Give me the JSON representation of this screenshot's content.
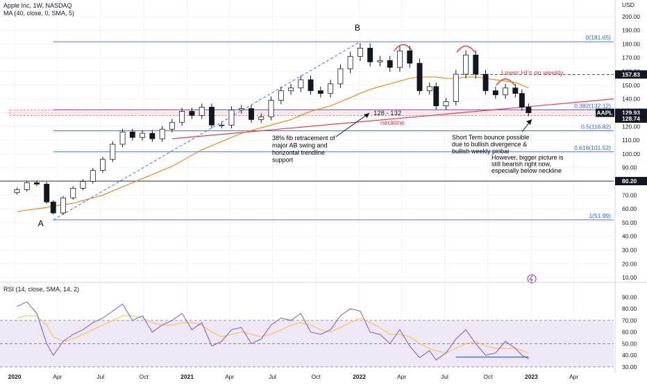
{
  "header": {
    "title": "Apple Inc, 1W, NASDAQ",
    "indicator": "MA (40, close, 0, SMA, 5)",
    "rsi_title": "RSI (14, close, SMA, 14, 2)"
  },
  "price_axis": {
    "currency": "USD",
    "ticks": [
      200,
      190,
      180,
      170,
      160,
      150,
      140,
      130,
      120,
      110,
      100,
      90,
      80,
      70,
      60,
      50,
      40,
      30,
      20,
      10
    ],
    "range": [
      6,
      208
    ]
  },
  "rsi_axis": {
    "ticks": [
      90,
      80,
      70,
      60,
      50,
      40,
      30
    ],
    "range": [
      27,
      92
    ],
    "band": [
      30,
      70
    ],
    "mid": 50
  },
  "time_axis": {
    "labels": [
      "2020",
      "Apr",
      "Jul",
      "Oct",
      "2021",
      "Apr",
      "Jul",
      "Oct",
      "2022",
      "Apr",
      "Jul",
      "Oct",
      "2023",
      "Apr"
    ]
  },
  "price_tags": [
    {
      "label": "157.83",
      "value": 157.83,
      "bg": "#131722",
      "fg": "#ffffff"
    },
    {
      "label": "AAPL",
      "value": 129.93,
      "bg": "#131722",
      "fg": "#ffffff"
    },
    {
      "label": "129.93",
      "value": 129.93,
      "bg": "#131722",
      "fg": "#ffffff"
    },
    {
      "label": "128.74",
      "value": 128.74,
      "bg": "#131722",
      "fg": "#ffffff"
    },
    {
      "label": "80.20",
      "value": 80.2,
      "bg": "#131722",
      "fg": "#ffffff"
    }
  ],
  "fib_levels": [
    {
      "label": "0(181.65)",
      "value": 181.65
    },
    {
      "label": "0.382(132.12)",
      "value": 132.12
    },
    {
      "label": "0.5(116.82)",
      "value": 116.82
    },
    {
      "label": "0.618(101.52)",
      "value": 101.52
    },
    {
      "label": "1(51.99)",
      "value": 51.99
    }
  ],
  "annotations": {
    "point_a": "A",
    "point_b": "B",
    "zone": "128 - 132",
    "neckline": "neckline",
    "lower_his": "Lower HI's on weekly",
    "fib_note": [
      "38% fib retracement of",
      "major AB swing and",
      "horizontal trendline",
      "support"
    ],
    "bounce_note": [
      "Short Term bounce possible",
      "due  to bullish divergence &",
      "bullish weekly pinbar"
    ],
    "bearish_note": [
      "However, bigger picture is",
      "still bearish right now,",
      "especially below neckline"
    ]
  },
  "colors": {
    "up": "#131722",
    "down": "#131722",
    "ma": "#f57c00",
    "fib": "#2962ff",
    "trendline": "#f23645",
    "rsi": "#7e57c2",
    "rsi_ma": "#fbc02d",
    "rsi_band": "#ede7f6"
  },
  "chart_data": [
    {
      "type": "candlestick",
      "title": "Apple Inc, 1W, NASDAQ",
      "ylabel": "USD",
      "ylim": [
        6,
        208
      ],
      "x": [
        "2020-01-06",
        "2020-01-27",
        "2020-02-17",
        "2020-03-09",
        "2020-03-23",
        "2020-04-13",
        "2020-05-04",
        "2020-05-25",
        "2020-06-15",
        "2020-07-06",
        "2020-07-27",
        "2020-08-17",
        "2020-09-07",
        "2020-09-28",
        "2020-10-19",
        "2020-11-09",
        "2020-11-30",
        "2020-12-21",
        "2021-01-11",
        "2021-02-01",
        "2021-02-22",
        "2021-03-15",
        "2021-04-05",
        "2021-04-26",
        "2021-05-17",
        "2021-06-07",
        "2021-06-28",
        "2021-07-19",
        "2021-08-09",
        "2021-08-30",
        "2021-09-20",
        "2021-10-11",
        "2021-11-01",
        "2021-11-22",
        "2021-12-13",
        "2022-01-03",
        "2022-01-24",
        "2022-02-14",
        "2022-03-07",
        "2022-03-28",
        "2022-04-18",
        "2022-05-09",
        "2022-05-30",
        "2022-06-13",
        "2022-07-04",
        "2022-07-25",
        "2022-08-15",
        "2022-09-05",
        "2022-09-26",
        "2022-10-17",
        "2022-11-07",
        "2022-11-28",
        "2022-12-12",
        "2022-12-26"
      ],
      "series": [
        {
          "name": "AAPL",
          "values": [
            74,
            79,
            78,
            65,
            57,
            68,
            75,
            80,
            88,
            96,
            107,
            116,
            112,
            115,
            111,
            118,
            123,
            131,
            128,
            134,
            121,
            121,
            132,
            133,
            125,
            127,
            139,
            146,
            148,
            154,
            146,
            144,
            151,
            162,
            171,
            177,
            167,
            168,
            163,
            175,
            166,
            146,
            149,
            135,
            138,
            158,
            172,
            158,
            146,
            143,
            148,
            144,
            134,
            129.93
          ]
        },
        {
          "name": "MA (40, close, 0, SMA, 5)",
          "values": [
            58,
            59,
            60,
            61,
            62,
            63,
            64,
            66,
            68,
            70,
            73,
            76,
            79,
            82,
            85,
            88,
            91,
            95,
            99,
            103,
            106,
            109,
            112,
            115,
            117,
            119,
            121,
            123,
            125,
            128,
            131,
            133,
            135,
            138,
            141,
            144,
            147,
            149,
            151,
            153,
            155,
            156,
            156,
            156,
            155,
            155,
            156,
            156,
            155,
            154,
            153,
            152,
            150,
            148
          ]
        }
      ]
    },
    {
      "type": "line",
      "title": "RSI (14, close, SMA, 14, 2)",
      "ylim": [
        27,
        92
      ],
      "x": [
        "2020-01-06",
        "2020-01-27",
        "2020-02-17",
        "2020-03-09",
        "2020-03-23",
        "2020-04-13",
        "2020-05-04",
        "2020-05-25",
        "2020-06-15",
        "2020-07-06",
        "2020-07-27",
        "2020-08-17",
        "2020-09-07",
        "2020-09-28",
        "2020-10-19",
        "2020-11-09",
        "2020-11-30",
        "2020-12-21",
        "2021-01-11",
        "2021-02-01",
        "2021-02-22",
        "2021-03-15",
        "2021-04-05",
        "2021-04-26",
        "2021-05-17",
        "2021-06-07",
        "2021-06-28",
        "2021-07-19",
        "2021-08-09",
        "2021-08-30",
        "2021-09-20",
        "2021-10-11",
        "2021-11-01",
        "2021-11-22",
        "2021-12-13",
        "2022-01-03",
        "2022-01-24",
        "2022-02-14",
        "2022-03-07",
        "2022-03-28",
        "2022-04-18",
        "2022-05-09",
        "2022-05-30",
        "2022-06-13",
        "2022-07-04",
        "2022-07-25",
        "2022-08-15",
        "2022-09-05",
        "2022-09-26",
        "2022-10-17",
        "2022-11-07",
        "2022-11-28",
        "2022-12-12",
        "2022-12-26"
      ],
      "series": [
        {
          "name": "RSI",
          "values": [
            82,
            86,
            76,
            50,
            40,
            52,
            58,
            62,
            68,
            72,
            78,
            84,
            70,
            74,
            60,
            66,
            70,
            76,
            62,
            68,
            48,
            52,
            62,
            64,
            50,
            54,
            66,
            72,
            70,
            76,
            60,
            58,
            62,
            74,
            80,
            78,
            60,
            58,
            50,
            62,
            48,
            38,
            44,
            36,
            42,
            54,
            62,
            50,
            40,
            42,
            52,
            46,
            40,
            37
          ]
        },
        {
          "name": "RSI MA",
          "values": [
            72,
            74,
            74,
            66,
            56,
            52,
            54,
            58,
            62,
            66,
            70,
            74,
            74,
            72,
            68,
            66,
            66,
            68,
            68,
            66,
            60,
            56,
            58,
            60,
            58,
            56,
            58,
            62,
            66,
            68,
            66,
            62,
            60,
            64,
            68,
            72,
            68,
            64,
            58,
            58,
            56,
            50,
            46,
            44,
            42,
            46,
            50,
            52,
            48,
            46,
            46,
            46,
            44,
            42
          ]
        }
      ]
    }
  ]
}
